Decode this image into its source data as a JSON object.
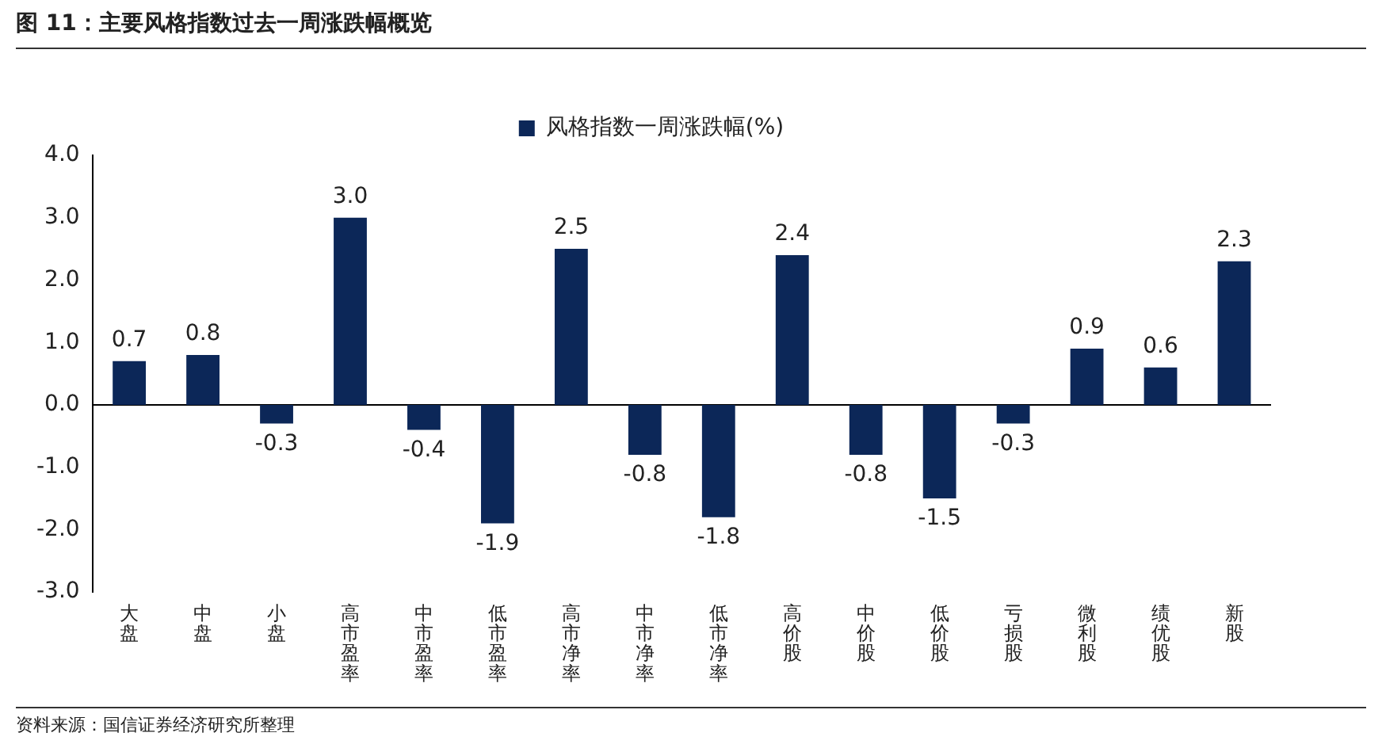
{
  "chart_data": {
    "type": "bar",
    "title": "图 11：主要风格指数过去一周涨跌幅概览",
    "categories": [
      "大盘",
      "中盘",
      "小盘",
      "高市盈率",
      "中市盈率",
      "低市盈率",
      "高市净率",
      "中市净率",
      "低市净率",
      "高价股",
      "中价股",
      "低价股",
      "亏损股",
      "微利股",
      "绩优股",
      "新股"
    ],
    "series": [
      {
        "name": "风格指数一周涨跌幅(%)",
        "color": "#0c2758",
        "values": [
          0.7,
          0.8,
          -0.3,
          3.0,
          -0.4,
          -1.9,
          2.5,
          -0.8,
          -1.8,
          2.4,
          -0.8,
          -1.5,
          -0.3,
          0.9,
          0.6,
          2.3
        ],
        "value_labels": [
          "0.7",
          "0.8",
          "-0.3",
          "3.0",
          "-0.4",
          "-1.9",
          "2.5",
          "-0.8",
          "-1.8",
          "2.4",
          "-0.8",
          "-1.5",
          "-0.3",
          "0.9",
          "0.6",
          "2.3"
        ]
      }
    ],
    "ylim": [
      -3,
      4
    ],
    "yticks": [
      {
        "value": -3,
        "label": "-3.0"
      },
      {
        "value": -2,
        "label": "-2.0"
      },
      {
        "value": -1,
        "label": "-1.0"
      },
      {
        "value": 0,
        "label": "0.0"
      },
      {
        "value": 1,
        "label": "1.0"
      },
      {
        "value": 2,
        "label": "2.0"
      },
      {
        "value": 3,
        "label": "3.0"
      },
      {
        "value": 4,
        "label": "4.0"
      }
    ],
    "grid": false,
    "legend": "top",
    "ref_lines": [
      {
        "axis": "y",
        "value": 0,
        "color": "#000000"
      }
    ],
    "annotations": [
      "资料来源：国信证券经济研究所整理"
    ]
  }
}
